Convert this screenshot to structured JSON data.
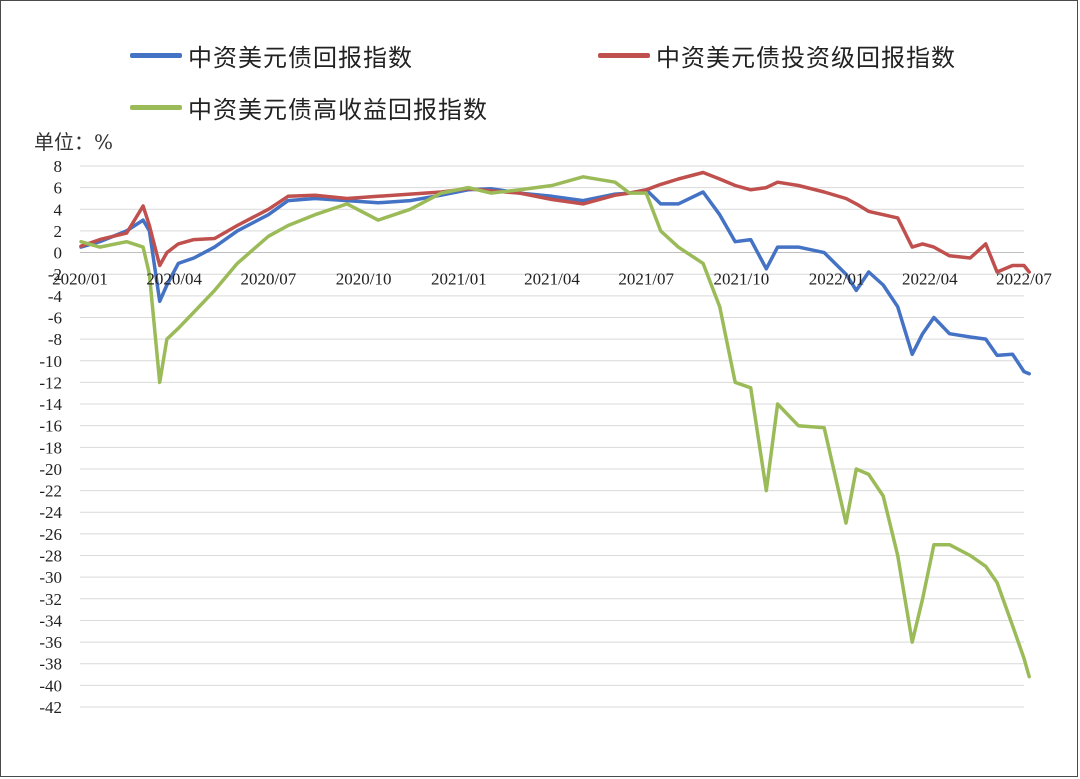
{
  "chart_data": {
    "type": "line",
    "unit_label": "单位：%",
    "x_labels": [
      "2020/01",
      "2020/04",
      "2020/07",
      "2020/10",
      "2021/01",
      "2021/04",
      "2021/07",
      "2021/10",
      "2022/01",
      "2022/04",
      "2022/07"
    ],
    "x_range": [
      "2020-01",
      "2022-07"
    ],
    "ylim": [
      -42,
      8
    ],
    "y_ticks": [
      8,
      6,
      4,
      2,
      0,
      -2,
      -4,
      -6,
      -8,
      -10,
      -12,
      -14,
      -16,
      -18,
      -20,
      -22,
      -24,
      -26,
      -28,
      -30,
      -32,
      -34,
      -36,
      -38,
      -40,
      -42
    ],
    "grid": true,
    "legend_position": "top",
    "series": [
      {
        "name": "中资美元债回报指数",
        "color": "#4472C4",
        "points": [
          [
            "2020-01-02",
            0.5
          ],
          [
            "2020-01-20",
            1.0
          ],
          [
            "2020-02-15",
            2.0
          ],
          [
            "2020-03-02",
            3.0
          ],
          [
            "2020-03-08",
            2.0
          ],
          [
            "2020-03-18",
            -4.5
          ],
          [
            "2020-03-25",
            -3.0
          ],
          [
            "2020-04-05",
            -1.0
          ],
          [
            "2020-04-20",
            -0.5
          ],
          [
            "2020-05-10",
            0.5
          ],
          [
            "2020-06-01",
            2.0
          ],
          [
            "2020-07-01",
            3.5
          ],
          [
            "2020-07-20",
            4.8
          ],
          [
            "2020-08-15",
            5.0
          ],
          [
            "2020-09-15",
            4.8
          ],
          [
            "2020-10-15",
            4.6
          ],
          [
            "2020-11-15",
            4.8
          ],
          [
            "2020-12-15",
            5.3
          ],
          [
            "2021-01-10",
            5.8
          ],
          [
            "2021-02-01",
            5.9
          ],
          [
            "2021-03-01",
            5.5
          ],
          [
            "2021-04-01",
            5.2
          ],
          [
            "2021-05-01",
            4.8
          ],
          [
            "2021-06-01",
            5.4
          ],
          [
            "2021-06-15",
            5.5
          ],
          [
            "2021-07-01",
            5.8
          ],
          [
            "2021-07-15",
            4.5
          ],
          [
            "2021-08-01",
            4.5
          ],
          [
            "2021-08-25",
            5.6
          ],
          [
            "2021-09-10",
            3.5
          ],
          [
            "2021-09-25",
            1.0
          ],
          [
            "2021-10-10",
            1.2
          ],
          [
            "2021-10-25",
            -1.5
          ],
          [
            "2021-11-05",
            0.5
          ],
          [
            "2021-11-25",
            0.5
          ],
          [
            "2021-12-20",
            0.0
          ],
          [
            "2022-01-10",
            -2.0
          ],
          [
            "2022-01-20",
            -3.5
          ],
          [
            "2022-02-01",
            -1.8
          ],
          [
            "2022-02-15",
            -3.0
          ],
          [
            "2022-03-01",
            -5.0
          ],
          [
            "2022-03-15",
            -9.4
          ],
          [
            "2022-03-25",
            -7.5
          ],
          [
            "2022-04-05",
            -6.0
          ],
          [
            "2022-04-20",
            -7.5
          ],
          [
            "2022-05-10",
            -7.8
          ],
          [
            "2022-05-25",
            -8.0
          ],
          [
            "2022-06-05",
            -9.5
          ],
          [
            "2022-06-20",
            -9.4
          ],
          [
            "2022-07-01",
            -11.0
          ],
          [
            "2022-07-06",
            -11.2
          ]
        ]
      },
      {
        "name": "中资美元债投资级回报指数",
        "color": "#C0504D",
        "points": [
          [
            "2020-01-02",
            0.6
          ],
          [
            "2020-01-20",
            1.2
          ],
          [
            "2020-02-15",
            1.8
          ],
          [
            "2020-03-02",
            4.3
          ],
          [
            "2020-03-08",
            2.5
          ],
          [
            "2020-03-18",
            -1.2
          ],
          [
            "2020-03-25",
            0.0
          ],
          [
            "2020-04-05",
            0.8
          ],
          [
            "2020-04-20",
            1.2
          ],
          [
            "2020-05-10",
            1.3
          ],
          [
            "2020-06-01",
            2.5
          ],
          [
            "2020-07-01",
            4.0
          ],
          [
            "2020-07-20",
            5.2
          ],
          [
            "2020-08-15",
            5.3
          ],
          [
            "2020-09-15",
            5.0
          ],
          [
            "2020-10-15",
            5.2
          ],
          [
            "2020-11-15",
            5.4
          ],
          [
            "2020-12-15",
            5.6
          ],
          [
            "2021-01-10",
            5.9
          ],
          [
            "2021-02-01",
            5.7
          ],
          [
            "2021-03-01",
            5.5
          ],
          [
            "2021-04-01",
            4.9
          ],
          [
            "2021-05-01",
            4.5
          ],
          [
            "2021-06-01",
            5.3
          ],
          [
            "2021-06-15",
            5.5
          ],
          [
            "2021-07-01",
            5.8
          ],
          [
            "2021-07-15",
            6.3
          ],
          [
            "2021-08-01",
            6.8
          ],
          [
            "2021-08-25",
            7.4
          ],
          [
            "2021-09-10",
            6.8
          ],
          [
            "2021-09-25",
            6.2
          ],
          [
            "2021-10-10",
            5.8
          ],
          [
            "2021-10-25",
            6.0
          ],
          [
            "2021-11-05",
            6.5
          ],
          [
            "2021-11-25",
            6.2
          ],
          [
            "2021-12-20",
            5.6
          ],
          [
            "2022-01-10",
            5.0
          ],
          [
            "2022-01-20",
            4.5
          ],
          [
            "2022-02-01",
            3.8
          ],
          [
            "2022-02-15",
            3.5
          ],
          [
            "2022-03-01",
            3.2
          ],
          [
            "2022-03-15",
            0.5
          ],
          [
            "2022-03-25",
            0.8
          ],
          [
            "2022-04-05",
            0.5
          ],
          [
            "2022-04-20",
            -0.3
          ],
          [
            "2022-05-10",
            -0.5
          ],
          [
            "2022-05-25",
            0.8
          ],
          [
            "2022-06-05",
            -1.8
          ],
          [
            "2022-06-20",
            -1.2
          ],
          [
            "2022-07-01",
            -1.2
          ],
          [
            "2022-07-06",
            -1.8
          ]
        ]
      },
      {
        "name": "中资美元债高收益回报指数",
        "color": "#9BBB59",
        "points": [
          [
            "2020-01-02",
            1.0
          ],
          [
            "2020-01-20",
            0.5
          ],
          [
            "2020-02-15",
            1.0
          ],
          [
            "2020-03-02",
            0.5
          ],
          [
            "2020-03-08",
            -2.0
          ],
          [
            "2020-03-18",
            -12.0
          ],
          [
            "2020-03-25",
            -8.0
          ],
          [
            "2020-04-05",
            -7.0
          ],
          [
            "2020-04-20",
            -5.5
          ],
          [
            "2020-05-10",
            -3.5
          ],
          [
            "2020-06-01",
            -1.0
          ],
          [
            "2020-07-01",
            1.5
          ],
          [
            "2020-07-20",
            2.5
          ],
          [
            "2020-08-15",
            3.5
          ],
          [
            "2020-09-15",
            4.5
          ],
          [
            "2020-10-15",
            3.0
          ],
          [
            "2020-11-15",
            4.0
          ],
          [
            "2020-12-15",
            5.5
          ],
          [
            "2021-01-10",
            6.0
          ],
          [
            "2021-02-01",
            5.5
          ],
          [
            "2021-03-01",
            5.8
          ],
          [
            "2021-04-01",
            6.2
          ],
          [
            "2021-05-01",
            7.0
          ],
          [
            "2021-06-01",
            6.5
          ],
          [
            "2021-06-15",
            5.5
          ],
          [
            "2021-07-01",
            5.5
          ],
          [
            "2021-07-15",
            2.0
          ],
          [
            "2021-08-01",
            0.5
          ],
          [
            "2021-08-25",
            -1.0
          ],
          [
            "2021-09-10",
            -5.0
          ],
          [
            "2021-09-25",
            -12.0
          ],
          [
            "2021-10-10",
            -12.5
          ],
          [
            "2021-10-25",
            -22.0
          ],
          [
            "2021-11-05",
            -14.0
          ],
          [
            "2021-11-25",
            -16.0
          ],
          [
            "2021-12-20",
            -16.2
          ],
          [
            "2022-01-10",
            -25.0
          ],
          [
            "2022-01-20",
            -20.0
          ],
          [
            "2022-02-01",
            -20.5
          ],
          [
            "2022-02-15",
            -22.5
          ],
          [
            "2022-03-01",
            -28.0
          ],
          [
            "2022-03-15",
            -36.0
          ],
          [
            "2022-03-25",
            -32.0
          ],
          [
            "2022-04-05",
            -27.0
          ],
          [
            "2022-04-20",
            -27.0
          ],
          [
            "2022-05-10",
            -28.0
          ],
          [
            "2022-05-25",
            -29.0
          ],
          [
            "2022-06-05",
            -30.5
          ],
          [
            "2022-06-20",
            -34.5
          ],
          [
            "2022-07-01",
            -37.5
          ],
          [
            "2022-07-06",
            -39.2
          ]
        ]
      }
    ]
  }
}
